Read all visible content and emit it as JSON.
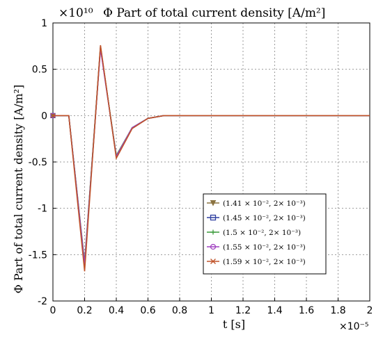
{
  "chart_data": {
    "type": "line",
    "title": "Φ Part of total current density [A/m²]",
    "y_multiplier": "×10¹⁰",
    "x_multiplier": "×10⁻⁵",
    "xlabel": "t [s]",
    "ylabel": "Φ Part of total current density [A/m²]",
    "xlim": [
      0,
      2
    ],
    "ylim": [
      -2,
      1
    ],
    "x_ticks": [
      "0",
      "0.2",
      "0.4",
      "0.6",
      "0.8",
      "1",
      "1.2",
      "1.4",
      "1.6",
      "1.8",
      "2"
    ],
    "y_ticks": [
      "1",
      "0.5",
      "0",
      "-0.5",
      "-1",
      "-1.5",
      "-2"
    ],
    "grid": true,
    "legend_position": "lower-right",
    "x": [
      0,
      0.1,
      0.2,
      0.3,
      0.4,
      0.5,
      0.6,
      0.7,
      0.8,
      0.9,
      1.0,
      1.1,
      1.2,
      1.3,
      1.4,
      1.5,
      1.6,
      1.7,
      1.8,
      1.9,
      2.0
    ],
    "series": [
      {
        "name": "(1.41 × 10⁻², 2× 10⁻³)",
        "color": "#8B7340",
        "marker": "triangle-down",
        "values": [
          0,
          0,
          -1.6,
          0.75,
          -0.45,
          -0.13,
          -0.03,
          0,
          0,
          0,
          0,
          0,
          0,
          0,
          0,
          0,
          0,
          0,
          0,
          0,
          0
        ]
      },
      {
        "name": "(1.45 × 10⁻², 2× 10⁻³)",
        "color": "#2E3FA0",
        "marker": "square",
        "values": [
          0,
          0,
          -1.62,
          0.74,
          -0.44,
          -0.13,
          -0.03,
          0,
          0,
          0,
          0,
          0,
          0,
          0,
          0,
          0,
          0,
          0,
          0,
          0,
          0
        ]
      },
      {
        "name": "(1.5 × 10⁻², 2× 10⁻³)",
        "color": "#3A9A3A",
        "marker": "plus",
        "values": [
          0,
          0,
          -1.58,
          0.73,
          -0.43,
          -0.13,
          -0.03,
          0,
          0,
          0,
          0,
          0,
          0,
          0,
          0,
          0,
          0,
          0,
          0,
          0,
          0
        ]
      },
      {
        "name": "(1.55 × 10⁻², 2× 10⁻³)",
        "color": "#A040C0",
        "marker": "circle",
        "values": [
          0,
          0,
          -1.6,
          0.72,
          -0.44,
          -0.13,
          -0.03,
          0,
          0,
          0,
          0,
          0,
          0,
          0,
          0,
          0,
          0,
          0,
          0,
          0,
          0
        ]
      },
      {
        "name": "(1.59 × 10⁻², 2× 10⁻³)",
        "color": "#C0532A",
        "marker": "x",
        "values": [
          0,
          0,
          -1.68,
          0.76,
          -0.46,
          -0.14,
          -0.03,
          0,
          0,
          0,
          0,
          0,
          0,
          0,
          0,
          0,
          0,
          0,
          0,
          0,
          0
        ]
      }
    ]
  }
}
